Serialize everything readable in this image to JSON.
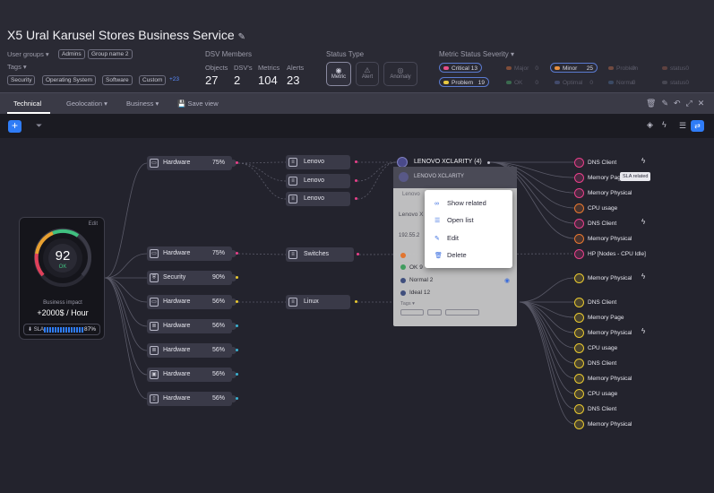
{
  "header": {
    "title": "X5 Ural Karusel Stores Business Service",
    "user_groups_label": "User groups ▾",
    "user_groups": [
      "Admins",
      "Group name 2"
    ],
    "tags_label": "Tags ▾",
    "tags": [
      "Security",
      "Operating System",
      "Software",
      "Custom"
    ],
    "tags_more": "+23",
    "dsv_label": "DSV Members",
    "stats": [
      {
        "label": "Objects",
        "value": "27"
      },
      {
        "label": "DSV's",
        "value": "2"
      },
      {
        "label": "Metrics",
        "value": "104"
      },
      {
        "label": "Alerts",
        "value": "23"
      }
    ],
    "status_type_label": "Status Type",
    "status_types": [
      "Metric",
      "Alert",
      "Anomaly"
    ],
    "severity_label": "Metric Status Severity ▾",
    "severities": [
      {
        "label": "Critical",
        "value": "13",
        "color": "#e8508a"
      },
      {
        "label": "Major",
        "value": "0",
        "color": "#e87840"
      },
      {
        "label": "Minor",
        "value": "25",
        "color": "#e89040"
      },
      {
        "label": "Problem",
        "value": "0",
        "color": "#c87050"
      },
      {
        "label": "status",
        "value": "0",
        "color": "#a06050"
      },
      {
        "label": "Problem",
        "value": "19",
        "color": "#e8c840"
      },
      {
        "label": "OK",
        "value": "0",
        "color": "#50b870"
      },
      {
        "label": "Optimal",
        "value": "0",
        "color": "#6070b0"
      },
      {
        "label": "Normal",
        "value": "0",
        "color": "#5070a0"
      },
      {
        "label": "status",
        "value": "0",
        "color": "#6a6a78"
      }
    ]
  },
  "tabs": {
    "technical": "Technical",
    "geolocation": "Geolocation ▾",
    "business": "Business ▾",
    "save_view": "Save view"
  },
  "card": {
    "edit": "Edit",
    "score": "92",
    "score_status": "OK",
    "impact_label": "Business impact",
    "impact_value": "+2000$ / Hour",
    "sla_label": "SLA",
    "sla_value": "87%",
    "sla_fraction": 0.87
  },
  "level1": [
    {
      "label": "Hardware",
      "pct": "75%",
      "icon": "laptop-icon"
    },
    {
      "label": "Hardware",
      "pct": "75%",
      "icon": "laptop-icon"
    },
    {
      "label": "Security",
      "pct": "90%",
      "icon": "shield-icon"
    },
    {
      "label": "Hardware",
      "pct": "56%",
      "icon": "laptop-icon"
    },
    {
      "label": "Hardware",
      "pct": "56%",
      "icon": "database-icon"
    },
    {
      "label": "Hardware",
      "pct": "56%",
      "icon": "database-icon"
    },
    {
      "label": "Hardware",
      "pct": "56%",
      "icon": "server-icon"
    },
    {
      "label": "Hardware",
      "pct": "56%",
      "icon": "device-icon"
    }
  ],
  "level2": [
    {
      "label": "Lenovo"
    },
    {
      "label": "Lenovo"
    },
    {
      "label": "Lenovo"
    },
    {
      "label": "Switches"
    },
    {
      "label": "Linux"
    }
  ],
  "xclarity": {
    "label": "LENOVO XCLARITY",
    "count": "(4)"
  },
  "popup": {
    "header": "LENOVO XCLARITY",
    "sub": "Lenovo",
    "rows": [
      "Lenovo X",
      "192.55.2",
      "OK 9",
      "Normal 2",
      "Ideal 12"
    ],
    "tags_label": "Tags"
  },
  "context_menu": [
    "Show related",
    "Open list",
    "Edit",
    "Delete"
  ],
  "tooltip": "SLA related",
  "metrics": [
    {
      "label": "DNS Client",
      "color": "#e8408a",
      "bolt": true
    },
    {
      "label": "Memory Page",
      "color": "#e8408a",
      "bolt": false
    },
    {
      "label": "Memory Physical",
      "color": "#e8408a",
      "bolt": false
    },
    {
      "label": "CPU usage",
      "color": "#e87830",
      "bolt": false
    },
    {
      "label": "DNS Client",
      "color": "#e8408a",
      "bolt": true
    },
    {
      "label": "Memory Physical",
      "color": "#e87830",
      "bolt": false
    },
    {
      "label": "HP [Nodes - CPU Idle]",
      "color": "#e8408a",
      "bolt": false
    },
    {
      "label": "Memory Physical",
      "color": "#e8c830",
      "bolt": true
    },
    {
      "label": "DNS Client",
      "color": "#e8c830",
      "bolt": false
    },
    {
      "label": "Memory Page",
      "color": "#e8c830",
      "bolt": false
    },
    {
      "label": "Memory Physical",
      "color": "#e8c830",
      "bolt": true
    },
    {
      "label": "CPU usage",
      "color": "#e8c830",
      "bolt": false
    },
    {
      "label": "DNS Client",
      "color": "#e8c830",
      "bolt": false
    },
    {
      "label": "Memory Physical",
      "color": "#e8c830",
      "bolt": false
    },
    {
      "label": "CPU usage",
      "color": "#e8c830",
      "bolt": false
    },
    {
      "label": "DNS Client",
      "color": "#e8c830",
      "bolt": false
    },
    {
      "label": "Memory Physical",
      "color": "#e8c830",
      "bolt": false
    }
  ]
}
